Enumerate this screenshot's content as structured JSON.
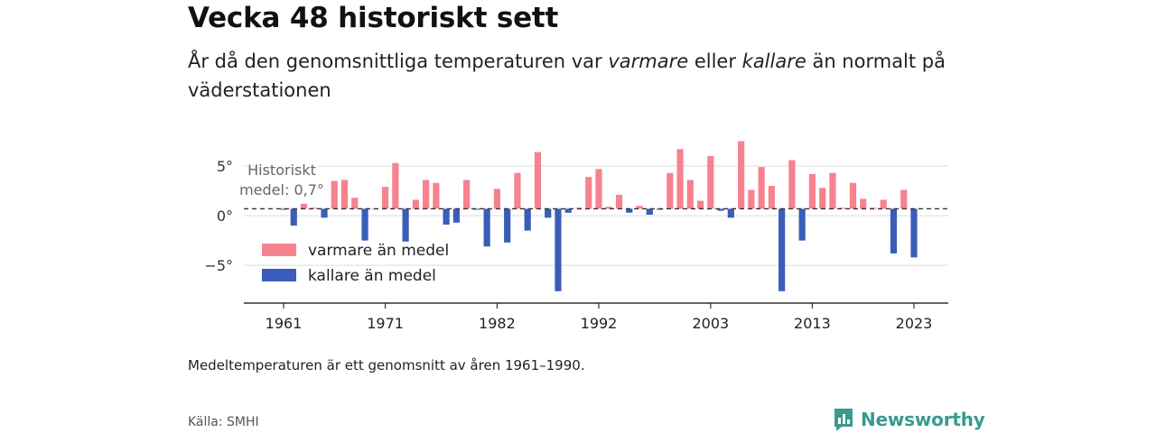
{
  "title": "Vecka 48 historiskt sett",
  "subtitle": {
    "part1": "År då den genomsnittliga temperaturen var ",
    "warm_word": "varmare",
    "part2": " eller ",
    "cold_word": "kallare",
    "part3": " än normalt på väderstationen"
  },
  "note": "Medeltemperaturen är ett genomsnitt av åren 1961–1990.",
  "source": "Källa: SMHI",
  "brand": {
    "name": "Newsworthy",
    "color": "#3a9a8f",
    "icon": "newsworthy-logo-icon"
  },
  "colors": {
    "warm": "#f7828f",
    "cold": "#3a5db9",
    "grid": "#dddddd",
    "axis": "#333333"
  },
  "chart_data": {
    "type": "bar",
    "x": [
      1961,
      1962,
      1963,
      1964,
      1965,
      1966,
      1967,
      1968,
      1969,
      1970,
      1971,
      1972,
      1973,
      1974,
      1975,
      1976,
      1977,
      1978,
      1979,
      1980,
      1981,
      1982,
      1983,
      1984,
      1985,
      1986,
      1987,
      1988,
      1989,
      1990,
      1991,
      1992,
      1993,
      1994,
      1995,
      1996,
      1997,
      1998,
      1999,
      2000,
      2001,
      2002,
      2003,
      2004,
      2005,
      2006,
      2007,
      2008,
      2009,
      2010,
      2011,
      2012,
      2013,
      2014,
      2015,
      2016,
      2017,
      2018,
      2019,
      2020,
      2021,
      2022,
      2023
    ],
    "values": [
      0.6,
      -1.0,
      1.2,
      0.8,
      -0.2,
      3.5,
      3.6,
      1.8,
      -2.5,
      0.7,
      2.9,
      5.3,
      -2.6,
      1.6,
      3.6,
      3.3,
      -0.9,
      -0.7,
      3.6,
      0.6,
      -3.1,
      2.7,
      -2.7,
      4.3,
      -1.5,
      6.4,
      -0.2,
      -7.6,
      0.3,
      0.8,
      3.9,
      4.7,
      0.9,
      2.1,
      0.3,
      1.0,
      0.1,
      0.6,
      4.3,
      6.7,
      3.6,
      1.5,
      6.0,
      0.5,
      -0.2,
      7.5,
      2.6,
      4.9,
      3.0,
      -7.6,
      5.6,
      -2.5,
      4.2,
      2.8,
      4.3,
      0.8,
      3.3,
      1.7,
      0.8,
      1.6,
      -3.8,
      2.6,
      -4.2
    ],
    "baseline": 0.7,
    "baseline_label_line1": "Historiskt",
    "baseline_label_line2": "medel: 0,7°",
    "yticks": [
      5,
      0,
      -5
    ],
    "ytick_labels": [
      "5°",
      "0°",
      "−5°"
    ],
    "ylim": [
      -8.8,
      9.0
    ],
    "xticks": [
      1961,
      1971,
      1982,
      1992,
      2003,
      2013,
      2023
    ],
    "xtick_labels": [
      "1961",
      "1971",
      "1982",
      "1992",
      "2003",
      "2013",
      "2023"
    ],
    "legend": [
      {
        "name": "varmare än medel",
        "key": "warm"
      },
      {
        "name": "kallare än medel",
        "key": "cold"
      }
    ],
    "legend_position": "bottom-left",
    "grid": true
  }
}
